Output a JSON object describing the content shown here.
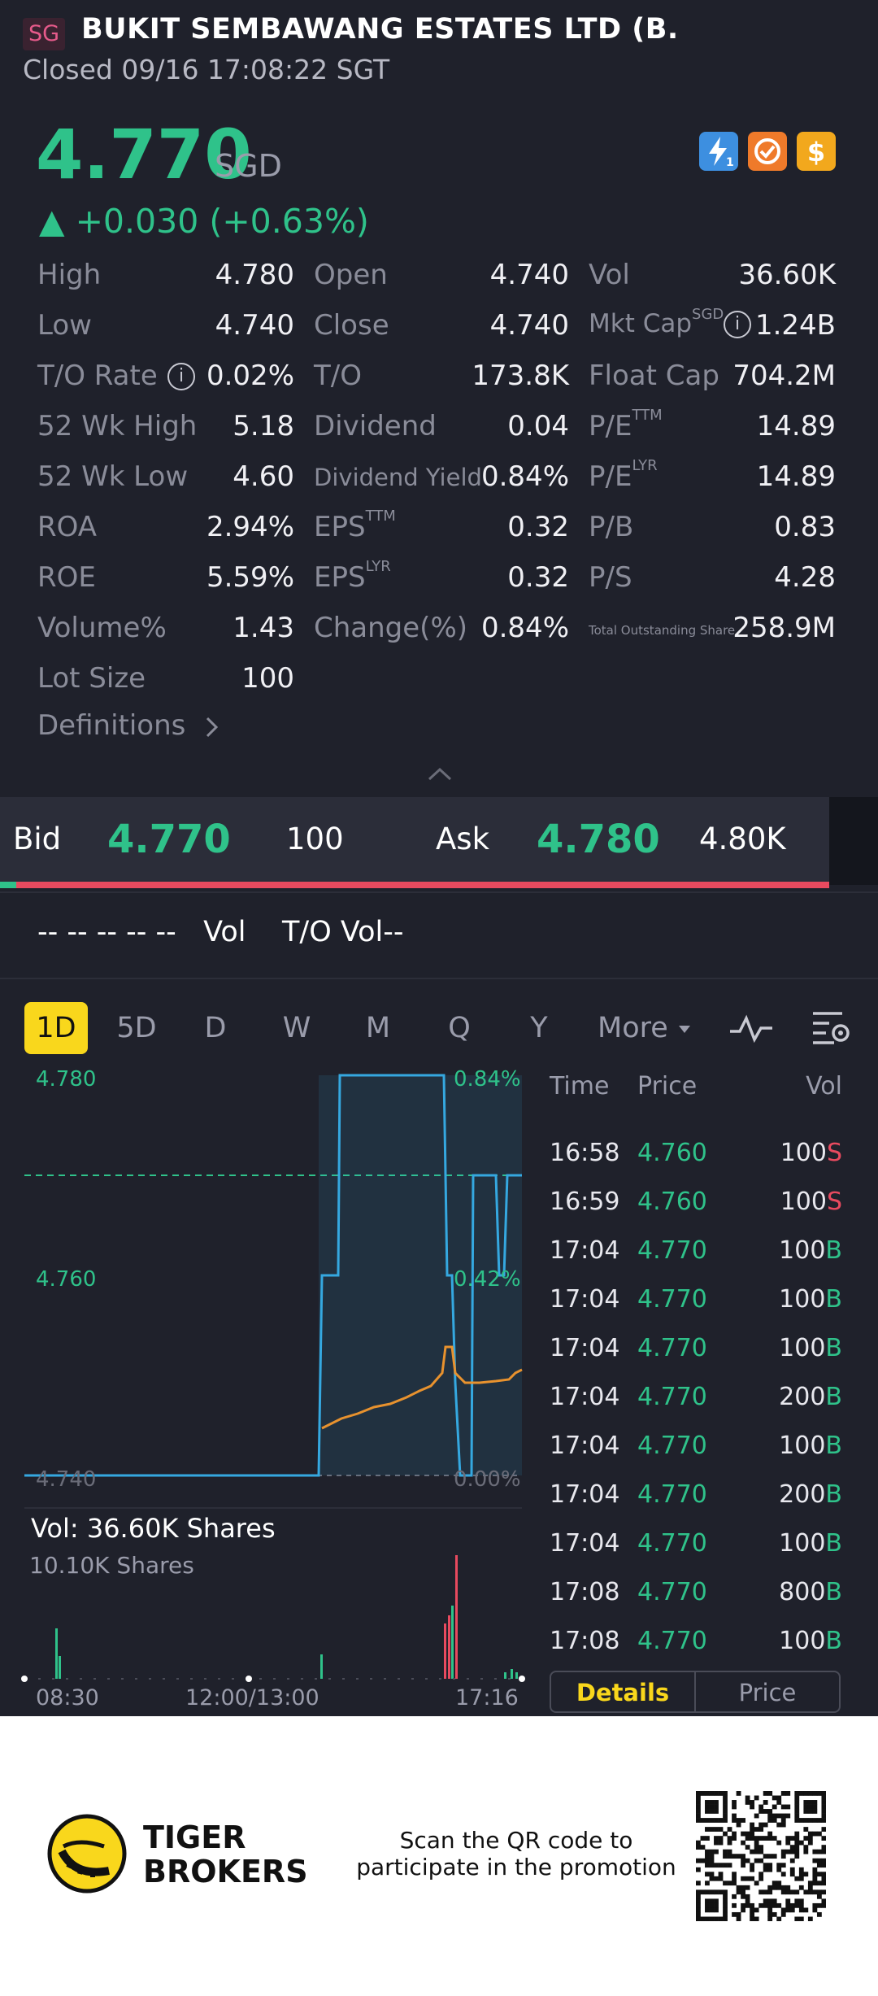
{
  "header": {
    "market_badge": "SG",
    "name": "BUKIT SEMBAWANG ESTATES LTD (B.",
    "status": "Closed 09/16 17:08:22 SGT"
  },
  "quote": {
    "price": "4.770",
    "currency": "SGD",
    "change": "▲ +0.030 (+0.63%)",
    "icons": [
      "lightning-icon",
      "shield-icon",
      "dollar-icon"
    ]
  },
  "stats": [
    {
      "label": "High",
      "value": "4.780"
    },
    {
      "label": "Open",
      "value": "4.740"
    },
    {
      "label": "Vol",
      "value": "36.60K"
    },
    {
      "label": "Low",
      "value": "4.740"
    },
    {
      "label": "Close",
      "value": "4.740"
    },
    {
      "label": "Mkt Cap",
      "sup": "SGD",
      "value": "1.24B"
    },
    {
      "label": "T/O Rate",
      "value": "0.02%"
    },
    {
      "label": "T/O",
      "value": "173.8K"
    },
    {
      "label": "Float Cap",
      "value": "704.2M"
    },
    {
      "label": "52 Wk High",
      "value": "5.18"
    },
    {
      "label": "Dividend",
      "value": "0.04"
    },
    {
      "label": "P/E",
      "sup": "TTM",
      "value": "14.89"
    },
    {
      "label": "52 Wk Low",
      "value": "4.60"
    },
    {
      "label": "Dividend Yield",
      "value": "0.84%"
    },
    {
      "label": "P/E",
      "sup": "LYR",
      "value": "14.89"
    },
    {
      "label": "ROA",
      "value": "2.94%"
    },
    {
      "label": "EPS",
      "sup": "TTM",
      "value": "0.32"
    },
    {
      "label": "P/B",
      "value": "0.83"
    },
    {
      "label": "ROE",
      "value": "5.59%"
    },
    {
      "label": "EPS",
      "sup": "LYR",
      "value": "0.32"
    },
    {
      "label": "P/S",
      "value": "4.28"
    },
    {
      "label": "Volume%",
      "value": "1.43"
    },
    {
      "label": "Change(%)",
      "value": "0.84%"
    },
    {
      "label": "Total Outstanding Share",
      "value": "258.9M"
    },
    {
      "label": "Lot Size",
      "value": "100"
    }
  ],
  "definitions_label": "Definitions",
  "orderbook": {
    "bid_label": "Bid",
    "bid_price": "4.770",
    "bid_size": "100",
    "ask_label": "Ask",
    "ask_price": "4.780",
    "ask_size": "4.80K",
    "bid_ratio": 0.02
  },
  "vol_line": "-- -- -- -- --   Vol    T/O Vol--",
  "tabs": [
    "1D",
    "5D",
    "D",
    "W",
    "M",
    "Q",
    "Y",
    "More"
  ],
  "chart": {
    "price_top": "4.780",
    "price_mid": "4.760",
    "price_low": "4.740",
    "pct_top": "0.84%",
    "pct_mid": "0.42%",
    "pct_low": "0.00%",
    "vol_text": "Vol:  36.60K Shares",
    "vol_scale": "10.10K Shares",
    "time_start": "08:30",
    "time_mid": "12:00/13:00",
    "time_end": "17:16",
    "colors": {
      "price_line": "#35a8e0",
      "avg_line": "#e8922e",
      "up": "#2fc28a",
      "down": "#e84a5f"
    }
  },
  "chart_data": {
    "type": "line",
    "x": [
      "08:30",
      "12:00/13:00",
      "17:16"
    ],
    "series": [],
    "ylim": [
      4.74,
      4.78
    ]
  },
  "trades": {
    "headers": {
      "time": "Time",
      "price": "Price",
      "vol": "Vol"
    },
    "rows": [
      {
        "time": "16:58",
        "price": "4.760",
        "vol": "100",
        "side": "S"
      },
      {
        "time": "16:59",
        "price": "4.760",
        "vol": "100",
        "side": "S"
      },
      {
        "time": "17:04",
        "price": "4.770",
        "vol": "100",
        "side": "B"
      },
      {
        "time": "17:04",
        "price": "4.770",
        "vol": "100",
        "side": "B"
      },
      {
        "time": "17:04",
        "price": "4.770",
        "vol": "100",
        "side": "B"
      },
      {
        "time": "17:04",
        "price": "4.770",
        "vol": "200",
        "side": "B"
      },
      {
        "time": "17:04",
        "price": "4.770",
        "vol": "100",
        "side": "B"
      },
      {
        "time": "17:04",
        "price": "4.770",
        "vol": "200",
        "side": "B"
      },
      {
        "time": "17:04",
        "price": "4.770",
        "vol": "100",
        "side": "B"
      },
      {
        "time": "17:08",
        "price": "4.770",
        "vol": "800",
        "side": "B"
      },
      {
        "time": "17:08",
        "price": "4.770",
        "vol": "100",
        "side": "B"
      }
    ],
    "segments": [
      "Details",
      "Price"
    ]
  },
  "footer": {
    "brand_line1": "TIGER",
    "brand_line2": "BROKERS",
    "promo_line1": "Scan the QR code to",
    "promo_line2": "participate in the promotion"
  }
}
